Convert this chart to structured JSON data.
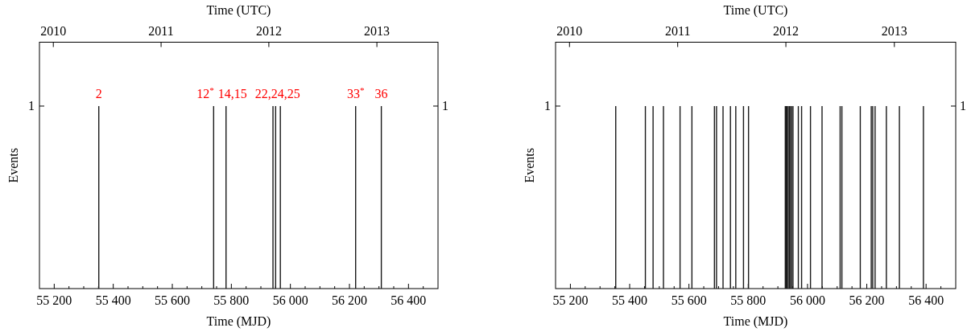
{
  "chart_data": [
    {
      "type": "bar",
      "xlabel": "Time (MJD)",
      "ylabel": "Events",
      "x2label": "Time (UTC)",
      "color": "#1a1a1a",
      "x": [
        55351,
        55740,
        55782,
        55941,
        55950,
        55966,
        56221,
        56308
      ],
      "values": [
        1,
        1,
        1,
        1,
        1,
        1,
        1,
        1
      ],
      "xlim": [
        55150,
        56500
      ],
      "xticks": [
        {
          "value": 55200,
          "label": "55 200"
        },
        {
          "value": 55250,
          "label": null
        },
        {
          "value": 55300,
          "label": null
        },
        {
          "value": 55350,
          "label": null
        },
        {
          "value": 55400,
          "label": "55 400"
        },
        {
          "value": 55450,
          "label": null
        },
        {
          "value": 55500,
          "label": null
        },
        {
          "value": 55550,
          "label": null
        },
        {
          "value": 55600,
          "label": "55 600"
        },
        {
          "value": 55650,
          "label": null
        },
        {
          "value": 55700,
          "label": null
        },
        {
          "value": 55750,
          "label": null
        },
        {
          "value": 55800,
          "label": "55 800"
        },
        {
          "value": 55850,
          "label": null
        },
        {
          "value": 55900,
          "label": null
        },
        {
          "value": 55950,
          "label": null
        },
        {
          "value": 56000,
          "label": "56 000"
        },
        {
          "value": 56050,
          "label": null
        },
        {
          "value": 56100,
          "label": null
        },
        {
          "value": 56150,
          "label": null
        },
        {
          "value": 56200,
          "label": "56 200"
        },
        {
          "value": 56250,
          "label": null
        },
        {
          "value": 56300,
          "label": null
        },
        {
          "value": 56350,
          "label": null
        },
        {
          "value": 56400,
          "label": "56 400"
        },
        {
          "value": 56450,
          "label": null
        }
      ],
      "x2lim": [
        "2009-11-15",
        "2013-07-27"
      ],
      "x2ticks": [
        "2010",
        "2011",
        "2012",
        "2013"
      ],
      "ylim": [
        0,
        1.35
      ],
      "yticks": [
        1
      ],
      "annotations": [
        "1",
        {
          "text": "2",
          "x": 55351,
          "y": 1
        },
        {
          "text": "12$^{*}$",
          "x": 55740,
          "y": 1
        },
        {
          "text": "14,15",
          "x": 55782,
          "y": 1
        },
        {
          "text": "22,24,25",
          "x": 55950,
          "y": 1
        },
        {
          "text": "33$^{*}$",
          "x": 56221,
          "y": 1
        },
        {
          "text": "36",
          "x": 56308,
          "y": 1
        }
      ]
    },
    {
      "type": "bar",
      "xlabel": "Time (MJD)",
      "ylabel": "Events",
      "x2label": "Time (UTC)",
      "color": "#1a1a1a",
      "x": [
        55353,
        55453,
        55479,
        55514,
        55570,
        55610,
        55686,
        55693,
        55715,
        55740,
        55758,
        55784,
        55801,
        55925,
        55928,
        55931,
        55935,
        55939,
        55943,
        55946,
        55951,
        55969,
        55980,
        56010,
        56049,
        56110,
        56116,
        56178,
        56215,
        56220,
        56228,
        56266,
        56310,
        56391
      ],
      "values": [
        1,
        1,
        1,
        1,
        1,
        1,
        1,
        1,
        1,
        1,
        1,
        1,
        1,
        1,
        1,
        1,
        1,
        1,
        1,
        1,
        1,
        1,
        1,
        1,
        1,
        1,
        1,
        1,
        1,
        1,
        1,
        1,
        1,
        1
      ],
      "xlim": [
        55150,
        56500
      ],
      "xticks": [
        {
          "value": 55200,
          "label": "55 200"
        },
        {
          "value": 55250,
          "label": null
        },
        {
          "value": 55300,
          "label": null
        },
        {
          "value": 55350,
          "label": null
        },
        {
          "value": 55400,
          "label": "55 400"
        },
        {
          "value": 55450,
          "label": null
        },
        {
          "value": 55500,
          "label": null
        },
        {
          "value": 55550,
          "label": null
        },
        {
          "value": 55600,
          "label": "55 600"
        },
        {
          "value": 55650,
          "label": null
        },
        {
          "value": 55700,
          "label": null
        },
        {
          "value": 55750,
          "label": null
        },
        {
          "value": 55800,
          "label": "55 800"
        },
        {
          "value": 55850,
          "label": null
        },
        {
          "value": 55900,
          "label": null
        },
        {
          "value": 55950,
          "label": null
        },
        {
          "value": 56000,
          "label": "56 000"
        },
        {
          "value": 56050,
          "label": null
        },
        {
          "value": 56100,
          "label": null
        },
        {
          "value": 56150,
          "label": null
        },
        {
          "value": 56200,
          "label": "56 200"
        },
        {
          "value": 56250,
          "label": null
        },
        {
          "value": 56300,
          "label": null
        },
        {
          "value": 56350,
          "label": null
        },
        {
          "value": 56400,
          "label": "56 400"
        },
        {
          "value": 56450,
          "label": null
        }
      ],
      "x2lim": [
        "2009-11-15",
        "2013-07-27"
      ],
      "x2ticks": [
        "2010",
        "2011",
        "2012",
        "2013"
      ],
      "ylim": [
        0,
        1.35
      ],
      "yticks": [
        1
      ],
      "annotations": [
        "1"
      ]
    }
  ]
}
